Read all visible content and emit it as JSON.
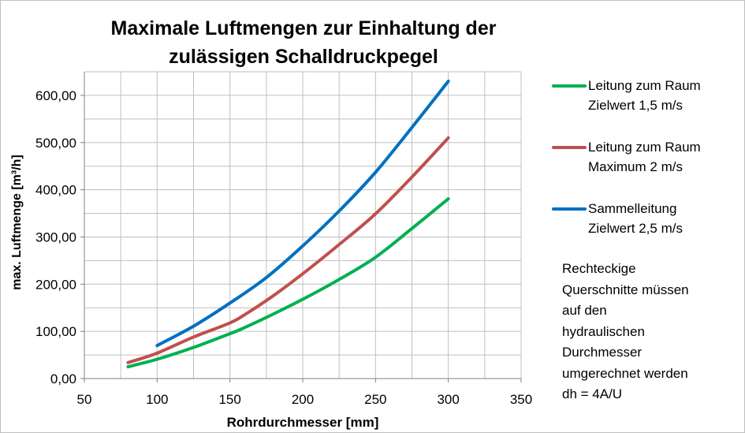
{
  "chart_data": {
    "type": "line",
    "title": "Maximale Luftmengen zur Einhaltung der zulässigen Schalldruckpegel",
    "xlabel": "Rohrdurchmesser [mm]",
    "ylabel": "max. Luftmenge [m³/h]",
    "xlim": [
      50,
      350
    ],
    "ylim": [
      0,
      650
    ],
    "xticks": [
      "50",
      "100",
      "150",
      "200",
      "250",
      "300",
      "350"
    ],
    "yticks": [
      "0,00",
      "100,00",
      "200,00",
      "300,00",
      "400,00",
      "500,00",
      "600,00"
    ],
    "grid": true,
    "legend_position": "right",
    "series": [
      {
        "name": "Leitung zum Raum Zielwert 1,5 m/s",
        "color": "#00b050",
        "points": [
          [
            80,
            25
          ],
          [
            100,
            41
          ],
          [
            125,
            66
          ],
          [
            150,
            95
          ],
          [
            160,
            108
          ],
          [
            180,
            137
          ],
          [
            200,
            168
          ],
          [
            225,
            210
          ],
          [
            250,
            257
          ],
          [
            275,
            318
          ],
          [
            300,
            381
          ]
        ]
      },
      {
        "name": "Leitung zum Raum Maximum 2 m/s",
        "color": "#c0504d",
        "points": [
          [
            80,
            34
          ],
          [
            100,
            54
          ],
          [
            125,
            88
          ],
          [
            150,
            118
          ],
          [
            160,
            135
          ],
          [
            180,
            176
          ],
          [
            200,
            222
          ],
          [
            225,
            284
          ],
          [
            250,
            349
          ],
          [
            275,
            427
          ],
          [
            300,
            510
          ]
        ]
      },
      {
        "name": "Sammelleitung Zielwert 2,5 m/s",
        "color": "#0070c0",
        "points": [
          [
            100,
            70
          ],
          [
            125,
            111
          ],
          [
            150,
            160
          ],
          [
            175,
            214
          ],
          [
            200,
            281
          ],
          [
            225,
            355
          ],
          [
            250,
            437
          ],
          [
            275,
            532
          ],
          [
            300,
            630
          ]
        ]
      }
    ],
    "annotation": "Rechteckige\nQuerschnitte müssen\nauf den\nhydraulischen\nDurchmesser\numgerechnet werden\ndh = 4A/U"
  }
}
